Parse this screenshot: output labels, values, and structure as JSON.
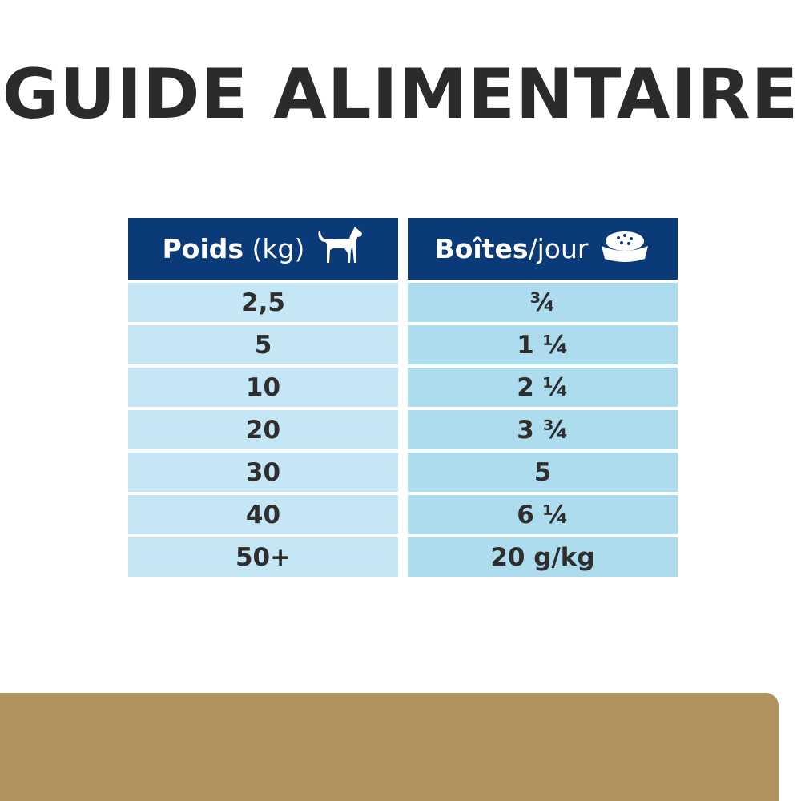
{
  "title": "GUIDE ALIMENTAIRE",
  "colors": {
    "header_bg": "#0b3a78",
    "weight_cell_bg": "#c5e6f4",
    "portion_cell_bg": "#aedcef",
    "footer_band": "#b0935f"
  },
  "table": {
    "headers": [
      {
        "bold": "Poids",
        "light": " (kg)",
        "icon": "dog-icon"
      },
      {
        "bold": "Boîtes",
        "light": "/jour",
        "icon": "food-bowl-icon"
      }
    ],
    "rows": [
      {
        "weight": "2,5",
        "portion": "¾"
      },
      {
        "weight": "5",
        "portion": "1 ¼"
      },
      {
        "weight": "10",
        "portion": "2 ¼"
      },
      {
        "weight": "20",
        "portion": "3 ¾"
      },
      {
        "weight": "30",
        "portion": "5"
      },
      {
        "weight": "40",
        "portion": "6 ¼"
      },
      {
        "weight": "50+",
        "portion": "20 g/kg"
      }
    ]
  }
}
